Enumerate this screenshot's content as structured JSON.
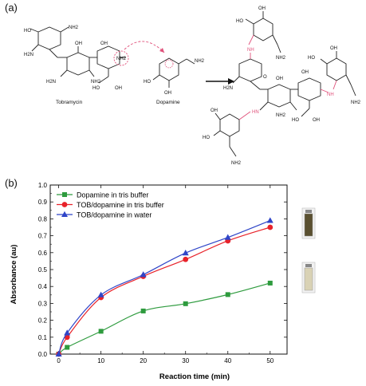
{
  "panels": {
    "a": "(a)",
    "b": "(b)"
  },
  "scheme": {
    "tobramycin_label": "Tobramycin",
    "dopamine_label": "Dopamine",
    "atoms": {
      "ho": "HO",
      "oh": "OH",
      "nh2": "NH2",
      "h2n": "H2N",
      "hn": "HN",
      "nh": "NH",
      "o": "O"
    }
  },
  "chart_data": {
    "type": "scatter",
    "xlabel": "Reaction time (min)",
    "ylabel": "Absorbance (au)",
    "xlim": [
      -2,
      54
    ],
    "ylim": [
      0,
      1.0
    ],
    "xticks": [
      0,
      10,
      20,
      30,
      40,
      50
    ],
    "yticks": [
      0.0,
      0.1,
      0.2,
      0.3,
      0.4,
      0.5,
      0.6,
      0.7,
      0.8,
      0.9,
      1.0
    ],
    "legend_position": "top-left",
    "series": [
      {
        "name": "Dopamine in tris buffer",
        "color": "#2e9b3e",
        "marker": "square",
        "x": [
          0,
          2,
          10,
          20,
          30,
          40,
          50
        ],
        "y": [
          0.0,
          0.04,
          0.135,
          0.255,
          0.298,
          0.352,
          0.42
        ]
      },
      {
        "name": "TOB/dopamine in tris buffer",
        "color": "#e8222a",
        "marker": "circle",
        "x": [
          0,
          2,
          10,
          20,
          30,
          40,
          50
        ],
        "y": [
          0.0,
          0.1,
          0.335,
          0.46,
          0.56,
          0.67,
          0.75
        ]
      },
      {
        "name": "TOB/dopamine in water",
        "color": "#2f45c8",
        "marker": "triangle",
        "x": [
          0,
          2,
          10,
          20,
          30,
          40,
          50
        ],
        "y": [
          0.0,
          0.125,
          0.35,
          0.47,
          0.598,
          0.69,
          0.79
        ]
      }
    ],
    "insets": [
      {
        "name": "vial-dark",
        "fill": "#5a5030"
      },
      {
        "name": "vial-light",
        "fill": "#d9d2b5"
      }
    ]
  }
}
